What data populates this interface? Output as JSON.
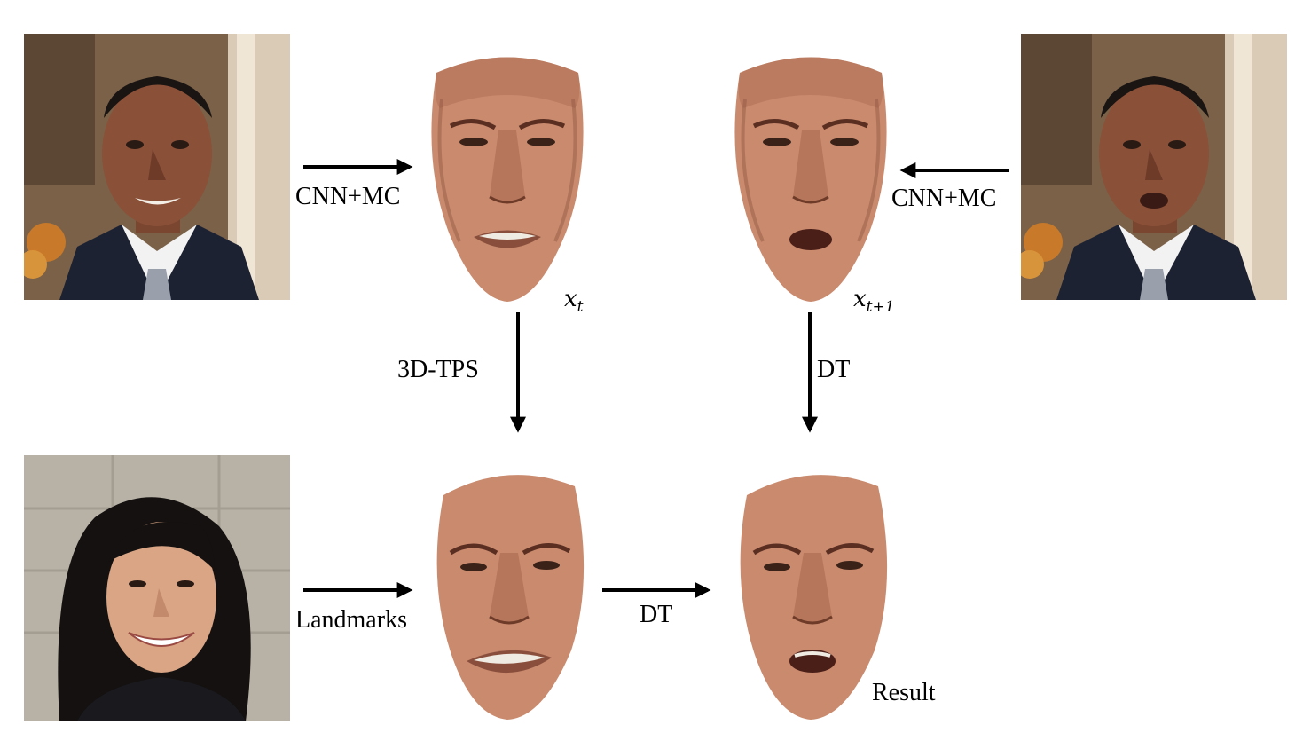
{
  "labels": {
    "cnn_mc_left": "CNN+MC",
    "cnn_mc_right": "CNN+MC",
    "tps": "3D-TPS",
    "dt_vertical": "DT",
    "landmarks": "Landmarks",
    "dt_horizontal": "DT",
    "result": "Result",
    "xt_base": "x",
    "xt_sub": "t",
    "xt1_base": "x",
    "xt1_sub": "t+1"
  },
  "colors": {
    "arrow": "#000000",
    "face_skin": "#c98a6e",
    "face_shade": "#8a4f3c",
    "suit": "#1d2233",
    "shirt": "#f2f2f2",
    "tie": "#9aa0ab",
    "background_photo": "#a38a6a",
    "wall": "#b8b2a6",
    "hair": "#141110"
  },
  "icons": {
    "source_frame_t": "portrait-man-icon",
    "source_frame_t1": "portrait-man-icon",
    "target_image": "portrait-woman-icon",
    "face_models": "face-mesh-icon"
  }
}
